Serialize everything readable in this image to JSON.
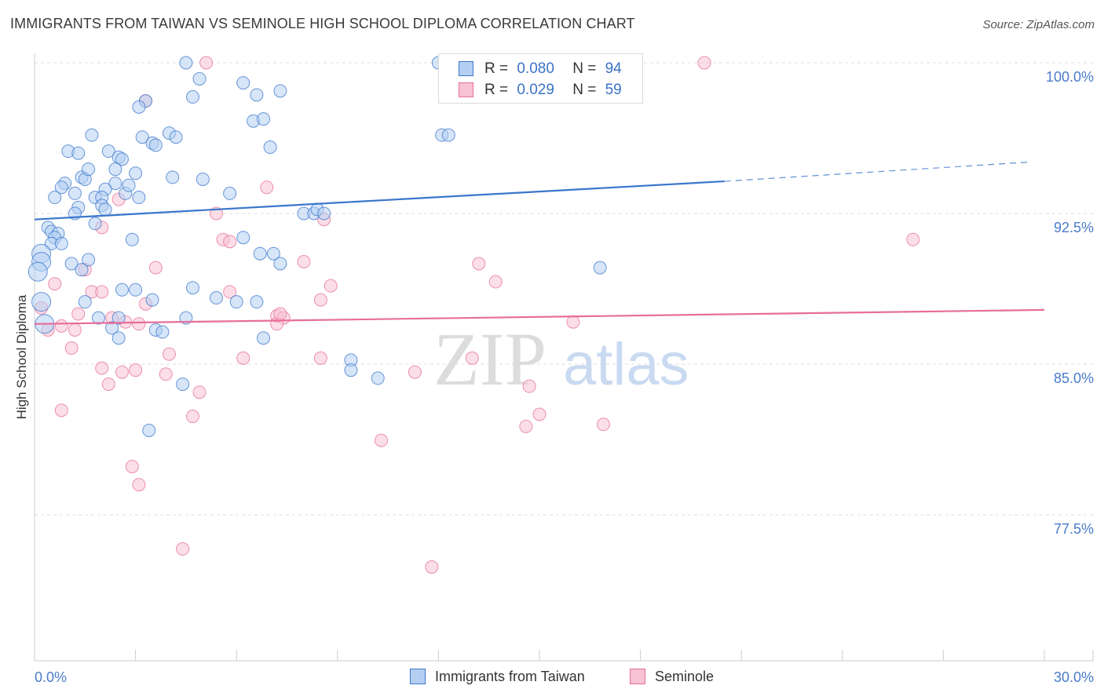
{
  "title": "IMMIGRANTS FROM TAIWAN VS SEMINOLE HIGH SCHOOL DIPLOMA CORRELATION CHART",
  "source": "Source: ZipAtlas.com",
  "watermark": {
    "zip": "ZIP",
    "atlas": "atlas"
  },
  "legend_top": [
    {
      "r_label": "R =",
      "r_value": "0.080",
      "n_label": "N =",
      "n_value": "94"
    },
    {
      "r_label": "R =",
      "r_value": "0.029",
      "n_label": "N =",
      "n_value": "59"
    }
  ],
  "legend_bottom": [
    "Immigrants from Taiwan",
    "Seminole"
  ],
  "colors": {
    "blue": "#3a76cc",
    "pink": "#e76e9a",
    "blue_fill": "#b5cff3",
    "pink_fill": "#f7c2d4",
    "tick_text": "#4a7cc9",
    "grid": "#dddddd"
  },
  "chart_data": {
    "type": "scatter",
    "title": "IMMIGRANTS FROM TAIWAN VS SEMINOLE HIGH SCHOOL DIPLOMA CORRELATION CHART",
    "xlabel": "",
    "ylabel": "High School Diploma",
    "xlim": [
      0,
      30
    ],
    "ylim": [
      70.5,
      100.7
    ],
    "x_ticks": [
      {
        "value": 0,
        "label": "0.0%"
      },
      {
        "value": 30,
        "label": "30.0%"
      }
    ],
    "y_ticks": [
      {
        "value": 100,
        "label": "100.0%"
      },
      {
        "value": 92.5,
        "label": "92.5%"
      },
      {
        "value": 85,
        "label": "85.0%"
      },
      {
        "value": 77.5,
        "label": "77.5%"
      }
    ],
    "grid": true,
    "legend": "top-center",
    "series": [
      {
        "name": "Immigrants from Taiwan",
        "color": "blue",
        "R": 0.08,
        "N": 94,
        "trend": {
          "x": [
            0,
            20.5
          ],
          "y": [
            92.2,
            94.1
          ],
          "dashed_x": [
            20.5,
            29.5
          ],
          "dashed_y": [
            94.1,
            95.05
          ]
        },
        "points": [
          [
            4.5,
            100
          ],
          [
            12,
            100
          ],
          [
            4.9,
            99.2
          ],
          [
            6.2,
            99
          ],
          [
            4.7,
            98.3
          ],
          [
            3.3,
            98.1
          ],
          [
            3.1,
            97.8
          ],
          [
            7.3,
            98.6
          ],
          [
            6.6,
            98.4
          ],
          [
            6.5,
            97.1
          ],
          [
            6.8,
            97.2
          ],
          [
            12.1,
            96.4
          ],
          [
            12.3,
            96.4
          ],
          [
            1.7,
            96.4
          ],
          [
            3.2,
            96.3
          ],
          [
            3.5,
            96
          ],
          [
            4.0,
            96.5
          ],
          [
            4.2,
            96.3
          ],
          [
            3.6,
            95.9
          ],
          [
            7.0,
            95.8
          ],
          [
            2.2,
            95.6
          ],
          [
            1.0,
            95.6
          ],
          [
            1.3,
            95.5
          ],
          [
            2.5,
            95.3
          ],
          [
            2.6,
            95.2
          ],
          [
            2.4,
            94.7
          ],
          [
            3.0,
            94.5
          ],
          [
            1.4,
            94.3
          ],
          [
            4.1,
            94.3
          ],
          [
            1.5,
            94.2
          ],
          [
            2.4,
            94.0
          ],
          [
            5.0,
            94.2
          ],
          [
            0.9,
            94.0
          ],
          [
            0.8,
            93.8
          ],
          [
            2.1,
            93.7
          ],
          [
            2.7,
            93.5
          ],
          [
            1.2,
            93.5
          ],
          [
            0.6,
            93.3
          ],
          [
            1.8,
            93.3
          ],
          [
            2.0,
            93.3
          ],
          [
            3.1,
            93.3
          ],
          [
            5.8,
            93.5
          ],
          [
            2.0,
            92.9
          ],
          [
            1.3,
            92.8
          ],
          [
            2.1,
            92.7
          ],
          [
            1.2,
            92.5
          ],
          [
            8.0,
            92.5
          ],
          [
            8.3,
            92.5
          ],
          [
            8.4,
            92.7
          ],
          [
            1.8,
            92.0
          ],
          [
            0.4,
            91.8
          ],
          [
            0.5,
            91.6
          ],
          [
            0.7,
            91.5
          ],
          [
            0.6,
            91.3
          ],
          [
            0.5,
            91.0
          ],
          [
            0.8,
            91.0
          ],
          [
            2.9,
            91.2
          ],
          [
            6.2,
            91.3
          ],
          [
            0.2,
            90.5
          ],
          [
            0.2,
            90.1
          ],
          [
            1.6,
            90.2
          ],
          [
            1.1,
            90.0
          ],
          [
            6.7,
            90.5
          ],
          [
            7.1,
            90.5
          ],
          [
            7.3,
            90.0
          ],
          [
            1.4,
            89.7
          ],
          [
            0.1,
            89.6
          ],
          [
            16.8,
            89.8
          ],
          [
            2.6,
            88.7
          ],
          [
            3.0,
            88.7
          ],
          [
            4.7,
            88.8
          ],
          [
            3.5,
            88.2
          ],
          [
            0.2,
            88.1
          ],
          [
            1.5,
            88.1
          ],
          [
            6.0,
            88.1
          ],
          [
            6.6,
            88.1
          ],
          [
            4.5,
            87.3
          ],
          [
            2.5,
            87.3
          ],
          [
            0.3,
            87.0
          ],
          [
            2.3,
            86.8
          ],
          [
            3.6,
            86.7
          ],
          [
            2.5,
            86.3
          ],
          [
            6.8,
            86.3
          ],
          [
            9.4,
            85.2
          ],
          [
            9.4,
            84.7
          ],
          [
            4.4,
            84.0
          ],
          [
            3.4,
            81.7
          ],
          [
            10.2,
            84.3
          ],
          [
            3.8,
            86.6
          ],
          [
            1.9,
            87.3
          ],
          [
            5.4,
            88.3
          ],
          [
            8.6,
            92.5
          ],
          [
            2.8,
            93.9
          ],
          [
            1.6,
            94.7
          ]
        ]
      },
      {
        "name": "Seminole",
        "color": "pink",
        "R": 0.029,
        "N": 59,
        "trend": {
          "x": [
            0,
            30
          ],
          "y": [
            87.0,
            87.7
          ]
        },
        "points": [
          [
            5.1,
            100
          ],
          [
            19.9,
            100
          ],
          [
            3.3,
            98.1
          ],
          [
            6.9,
            93.8
          ],
          [
            2.5,
            93.2
          ],
          [
            5.4,
            92.5
          ],
          [
            8.6,
            92.2
          ],
          [
            2.0,
            91.8
          ],
          [
            5.6,
            91.2
          ],
          [
            26.1,
            91.2
          ],
          [
            8.0,
            90.1
          ],
          [
            13.2,
            90.0
          ],
          [
            3.6,
            89.8
          ],
          [
            1.5,
            89.7
          ],
          [
            13.7,
            89.1
          ],
          [
            8.8,
            88.9
          ],
          [
            0.6,
            89.0
          ],
          [
            5.8,
            88.6
          ],
          [
            8.5,
            88.2
          ],
          [
            1.7,
            88.6
          ],
          [
            3.3,
            88.0
          ],
          [
            1.3,
            87.5
          ],
          [
            2.3,
            87.3
          ],
          [
            7.2,
            87.4
          ],
          [
            7.4,
            87.3
          ],
          [
            0.2,
            87.8
          ],
          [
            2.7,
            87.1
          ],
          [
            7.2,
            87.0
          ],
          [
            16.0,
            87.1
          ],
          [
            0.4,
            86.7
          ],
          [
            1.2,
            86.7
          ],
          [
            0.8,
            86.9
          ],
          [
            1.1,
            85.8
          ],
          [
            4.0,
            85.5
          ],
          [
            6.2,
            85.3
          ],
          [
            8.5,
            85.3
          ],
          [
            13.0,
            85.3
          ],
          [
            2.0,
            84.8
          ],
          [
            2.6,
            84.6
          ],
          [
            3.0,
            84.7
          ],
          [
            3.9,
            84.5
          ],
          [
            11.3,
            84.6
          ],
          [
            2.2,
            84.0
          ],
          [
            4.9,
            83.6
          ],
          [
            14.7,
            83.9
          ],
          [
            0.8,
            82.7
          ],
          [
            4.7,
            82.4
          ],
          [
            15.0,
            82.5
          ],
          [
            14.6,
            81.9
          ],
          [
            16.9,
            82.0
          ],
          [
            10.3,
            81.2
          ],
          [
            2.9,
            79.9
          ],
          [
            3.1,
            79.0
          ],
          [
            4.4,
            75.8
          ],
          [
            11.8,
            74.9
          ],
          [
            5.8,
            91.1
          ],
          [
            2.0,
            88.6
          ],
          [
            3.1,
            87.0
          ],
          [
            7.3,
            87.5
          ]
        ]
      }
    ]
  }
}
